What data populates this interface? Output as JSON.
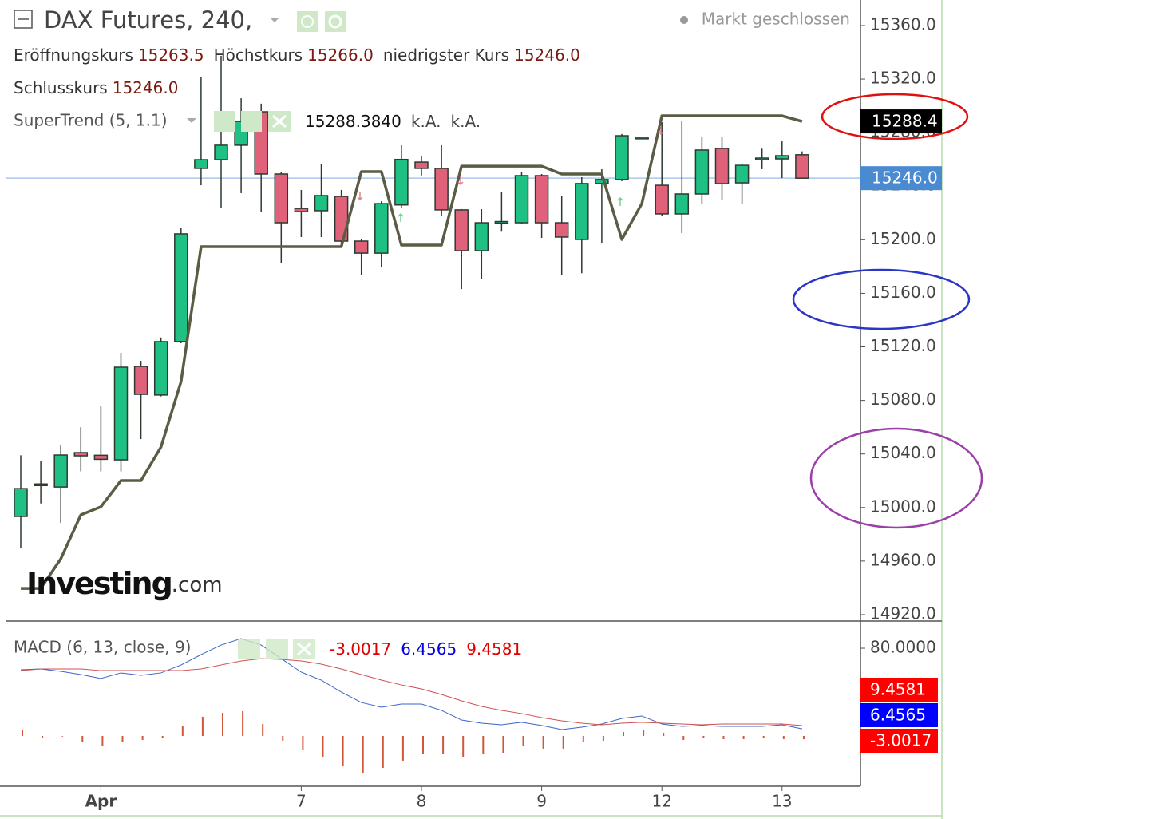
{
  "chart_data": [
    {
      "type": "candlestick",
      "title": "DAX Futures, 240,",
      "status": "Markt geschlossen",
      "legend": {
        "open_label": "Eröffnungskurs",
        "open": "15263.5",
        "high_label": "Höchstkurs",
        "high": "15266.0",
        "low_label": "niedrigster Kurs",
        "low": "15246.0",
        "close_label": "Schlusskurs",
        "close": "15246.0"
      },
      "open": [
        14993.3,
        15016,
        15015.3,
        15041,
        15039,
        15035.6,
        15105.4,
        15084,
        15124,
        15253.3,
        15259.8,
        15270.6,
        15295.6,
        15249.1,
        15223.4,
        15221.7,
        15232.4,
        15199,
        15190,
        15226,
        15258,
        15253.3,
        15222.3,
        15191.8,
        15212,
        15212.7,
        15247.9,
        15212.7,
        15200.2,
        15242,
        15245,
        15276,
        15240.7,
        15219.3,
        15234.2,
        15268.2,
        15242.5,
        15259.5,
        15260.4,
        15263.5
      ],
      "high": [
        15039,
        15035,
        15046.3,
        15060,
        15076,
        15115.5,
        15109.5,
        15127,
        15209.1,
        15321.8,
        15337.3,
        15305.7,
        15301.6,
        15250.9,
        15237.2,
        15256.8,
        15237.2,
        15200.2,
        15228.8,
        15270.6,
        15262.2,
        15270.6,
        15222.9,
        15222.9,
        15236,
        15250.9,
        15249.1,
        15233,
        15246.7,
        15252.7,
        15279,
        15276.3,
        15287.8,
        15288.4,
        15276.5,
        15276.5,
        15256.8,
        15268,
        15273.5,
        15266
      ],
      "low": [
        14969.4,
        15003,
        14988.5,
        15027,
        15027,
        15027,
        15051.1,
        15083,
        15122.7,
        15240.7,
        15224,
        15234.8,
        15221,
        15182.3,
        15202,
        15202,
        15197.2,
        15173.4,
        15179.3,
        15224,
        15248,
        15218,
        15163.2,
        15170.4,
        15206,
        15212.1,
        15201.4,
        15173.4,
        15175,
        15197.2,
        15243.7,
        15275.7,
        15218,
        15205,
        15227,
        15230,
        15227,
        15252.7,
        15246.1,
        15246
      ],
      "close": [
        15014.1,
        15017,
        15039.2,
        15038.6,
        15036,
        15104.8,
        15084.5,
        15123.9,
        15204.4,
        15259.8,
        15270.6,
        15288.4,
        15249.1,
        15212.7,
        15221,
        15233,
        15199,
        15190,
        15227,
        15260,
        15253.3,
        15222.3,
        15191.8,
        15212.7,
        15213,
        15247.9,
        15212.7,
        15202,
        15242,
        15245,
        15277.7,
        15276,
        15219.3,
        15234.2,
        15267,
        15241.9,
        15255.6,
        15260.4,
        15262.8,
        15246
      ],
      "up_color": "#1fc084",
      "down_color": "#e0627a",
      "overlays": [
        {
          "name": "SuperTrend (5, 1.1)",
          "color": "#5a5c44",
          "legend_values": [
            "15288.3840",
            "k.A.",
            "k.A."
          ],
          "values": [
            14939.6,
            14939.6,
            14961.7,
            14994.5,
            15000.5,
            15020.1,
            15020.1,
            15045.2,
            15094.1,
            15194.8,
            15194.8,
            15194.8,
            15194.8,
            15194.8,
            15194.8,
            15194.8,
            15194.8,
            15250.9,
            15250.9,
            15196,
            15196,
            15196,
            15255,
            15255,
            15255,
            15255,
            15255,
            15249.1,
            15249.1,
            15249.1,
            15200.2,
            15227,
            15292.6,
            15292.6,
            15292.6,
            15292.6,
            15292.6,
            15292.6,
            15292.6,
            15288.384
          ]
        }
      ],
      "price_line": {
        "value": 15246,
        "color": "#a8c8ec"
      },
      "badges": [
        {
          "value": 15288.4,
          "color": "#000000"
        },
        {
          "value": {
            "value": 15246,
            "label": "15246.0"
          },
          "color": "#4a8ad0"
        }
      ],
      "ylim": [
        14915.2,
        15374.3
      ],
      "yticks": [
        {
          "value": 15360,
          "label": "15360.0"
        },
        {
          "value": 15320,
          "label": "15320.0"
        },
        {
          "value": 15280,
          "label": "15280.0"
        },
        {
          "value": 15240,
          "label": "15240.0"
        },
        {
          "value": 15200,
          "label": "15200.0"
        },
        {
          "value": 15160,
          "label": "15160.0"
        },
        {
          "value": 15120,
          "label": "15120.0"
        },
        {
          "value": 15080,
          "label": "15080.0"
        },
        {
          "value": 15040,
          "label": "15040.0"
        },
        {
          "value": 15000,
          "label": "15000.0"
        },
        {
          "value": 14960,
          "label": "14960.0"
        },
        {
          "value": 14920,
          "label": "14920.0"
        }
      ],
      "watermark": [
        "Investing",
        ".com"
      ]
    },
    {
      "type": "macd",
      "title": "MACD (6, 13, close, 9)",
      "categories": [
        null,
        null,
        null,
        null,
        "Apr",
        null,
        null,
        null,
        null,
        null,
        null,
        null,
        null,
        null,
        "7",
        null,
        null,
        null,
        null,
        null,
        "8",
        null,
        null,
        null,
        null,
        null,
        "9",
        null,
        null,
        null,
        null,
        null,
        "12",
        null,
        null,
        null,
        null,
        null,
        "13",
        null
      ],
      "histogram": {
        "color": "#d0583a",
        "values": [
          5.1,
          -2.2,
          -0.5,
          -5.8,
          -9.5,
          -5.8,
          -3.6,
          -2.2,
          8.7,
          17.5,
          21.1,
          22.5,
          10.9,
          -4.4,
          -13.1,
          -18.9,
          -27.6,
          -33.5,
          -29.1,
          -22.5,
          -16.7,
          -16.7,
          -18.9,
          -16.7,
          -15.3,
          -9.5,
          -11.6,
          -11.6,
          -5.8,
          -4.4,
          3.6,
          5.8,
          2.9,
          -3.6,
          -1.5,
          -2.9,
          -2.9,
          -2.2,
          -2.9,
          -3.0017
        ],
        "badge_color": "#ff0000"
      },
      "series": [
        {
          "color": "#3a64c4",
          "badge_color": "#0000ff",
          "values": [
            60.4,
            61.1,
            58.9,
            56.0,
            52.4,
            57.5,
            55.3,
            57.5,
            64.7,
            74.2,
            82.9,
            88.7,
            82.9,
            70.5,
            58.2,
            50.9,
            40.0,
            30.5,
            26.2,
            29.1,
            29.1,
            23.3,
            14.5,
            11.6,
            10.2,
            12.4,
            9.5,
            5.8,
            8.0,
            10.9,
            16.0,
            18.2,
            10.9,
            8.7,
            9.5,
            8.7,
            8.7,
            8.7,
            10.2,
            6.4565
          ]
        },
        {
          "color": "#d05050",
          "badge_color": "#ff0000",
          "values": [
            59.6,
            61.1,
            61.1,
            61.1,
            59.6,
            59.6,
            59.6,
            59.6,
            59.6,
            61.1,
            64.7,
            68.4,
            70.5,
            69.8,
            68.4,
            65.5,
            61.1,
            56.0,
            50.9,
            46.5,
            42.9,
            37.8,
            32.0,
            26.9,
            23.3,
            20.4,
            16.7,
            13.8,
            11.6,
            10.2,
            11.6,
            12.4,
            11.6,
            10.9,
            10.2,
            10.9,
            10.9,
            10.9,
            10.9,
            9.4581
          ]
        }
      ],
      "ylim": [
        -44.4,
        103.3
      ],
      "yticks": [
        {
          "value": 80,
          "label": "80.0000"
        }
      ]
    }
  ]
}
